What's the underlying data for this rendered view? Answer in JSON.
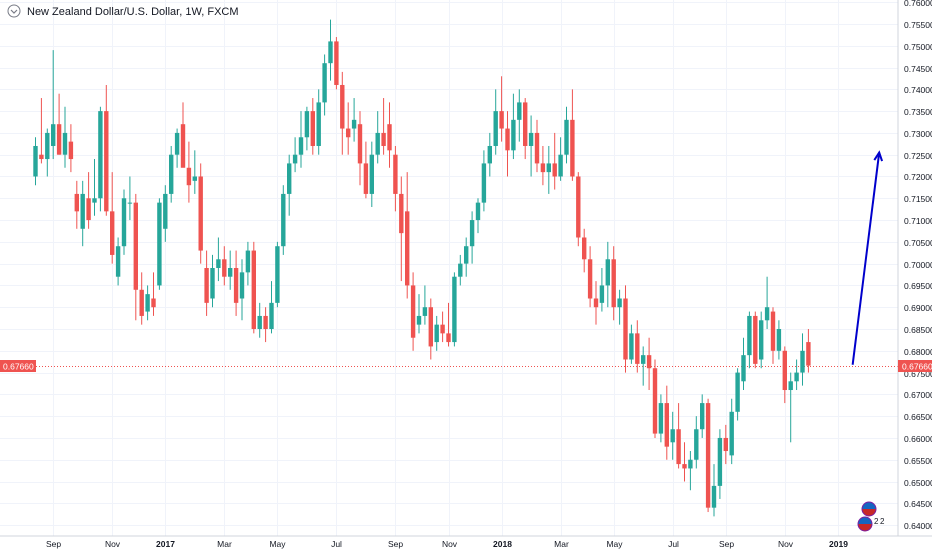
{
  "chart_data": {
    "type": "candlestick",
    "title": "New Zealand Dollar/U.S. Dollar, 1W, FXCM",
    "ylim": [
      0.6375,
      0.7605
    ],
    "yticks": [
      "0.76000",
      "0.75500",
      "0.75000",
      "0.74500",
      "0.74000",
      "0.73500",
      "0.73000",
      "0.72500",
      "0.72000",
      "0.71500",
      "0.71000",
      "0.70500",
      "0.70000",
      "0.69500",
      "0.69000",
      "0.68500",
      "0.68000",
      "0.67500",
      "0.67000",
      "0.66500",
      "0.66000",
      "0.65500",
      "0.65000",
      "0.64500",
      "0.64000"
    ],
    "xticks": [
      {
        "index": 3,
        "label": "Sep"
      },
      {
        "index": 13,
        "label": "Nov"
      },
      {
        "index": 22,
        "label": "2017"
      },
      {
        "index": 32,
        "label": "Mar"
      },
      {
        "index": 41,
        "label": "May"
      },
      {
        "index": 51,
        "label": "Jul"
      },
      {
        "index": 61,
        "label": "Sep"
      },
      {
        "index": 70,
        "label": "Nov"
      },
      {
        "index": 79,
        "label": "2018"
      },
      {
        "index": 89,
        "label": "Mar"
      },
      {
        "index": 98,
        "label": "May"
      },
      {
        "index": 108,
        "label": "Jul"
      },
      {
        "index": 117,
        "label": "Sep"
      },
      {
        "index": 127,
        "label": "Nov"
      },
      {
        "index": 136,
        "label": "2019"
      }
    ],
    "grid": true,
    "up_color": "#26a69a",
    "down_color": "#ef5350",
    "current_price": 0.6766,
    "current_price_label": "0.67660",
    "current_price_color": "#ef5350",
    "annotation": {
      "type": "arrow",
      "color": "#0000cc",
      "from": {
        "index": 138.5,
        "price": 0.6768
      },
      "to": {
        "index": 143,
        "price": 0.7255
      }
    },
    "candles": [
      {
        "o": 0.72,
        "h": 0.729,
        "l": 0.718,
        "c": 0.727
      },
      {
        "o": 0.725,
        "h": 0.738,
        "l": 0.723,
        "c": 0.724
      },
      {
        "o": 0.724,
        "h": 0.731,
        "l": 0.72,
        "c": 0.73
      },
      {
        "o": 0.727,
        "h": 0.749,
        "l": 0.724,
        "c": 0.732
      },
      {
        "o": 0.732,
        "h": 0.739,
        "l": 0.725,
        "c": 0.725
      },
      {
        "o": 0.725,
        "h": 0.736,
        "l": 0.722,
        "c": 0.73
      },
      {
        "o": 0.728,
        "h": 0.732,
        "l": 0.721,
        "c": 0.724
      },
      {
        "o": 0.716,
        "h": 0.719,
        "l": 0.708,
        "c": 0.712
      },
      {
        "o": 0.708,
        "h": 0.719,
        "l": 0.704,
        "c": 0.716
      },
      {
        "o": 0.715,
        "h": 0.721,
        "l": 0.708,
        "c": 0.71
      },
      {
        "o": 0.714,
        "h": 0.724,
        "l": 0.711,
        "c": 0.715
      },
      {
        "o": 0.715,
        "h": 0.736,
        "l": 0.712,
        "c": 0.735
      },
      {
        "o": 0.735,
        "h": 0.741,
        "l": 0.711,
        "c": 0.712
      },
      {
        "o": 0.712,
        "h": 0.721,
        "l": 0.7,
        "c": 0.702
      },
      {
        "o": 0.697,
        "h": 0.706,
        "l": 0.695,
        "c": 0.704
      },
      {
        "o": 0.704,
        "h": 0.717,
        "l": 0.702,
        "c": 0.715
      },
      {
        "o": 0.714,
        "h": 0.72,
        "l": 0.71,
        "c": 0.714
      },
      {
        "o": 0.714,
        "h": 0.716,
        "l": 0.687,
        "c": 0.694
      },
      {
        "o": 0.694,
        "h": 0.698,
        "l": 0.686,
        "c": 0.688
      },
      {
        "o": 0.689,
        "h": 0.695,
        "l": 0.687,
        "c": 0.693
      },
      {
        "o": 0.692,
        "h": 0.698,
        "l": 0.688,
        "c": 0.69
      },
      {
        "o": 0.695,
        "h": 0.715,
        "l": 0.694,
        "c": 0.714
      },
      {
        "o": 0.708,
        "h": 0.718,
        "l": 0.705,
        "c": 0.716
      },
      {
        "o": 0.716,
        "h": 0.727,
        "l": 0.714,
        "c": 0.725
      },
      {
        "o": 0.725,
        "h": 0.731,
        "l": 0.722,
        "c": 0.73
      },
      {
        "o": 0.732,
        "h": 0.737,
        "l": 0.723,
        "c": 0.722
      },
      {
        "o": 0.722,
        "h": 0.728,
        "l": 0.714,
        "c": 0.718
      },
      {
        "o": 0.719,
        "h": 0.726,
        "l": 0.716,
        "c": 0.72
      },
      {
        "o": 0.72,
        "h": 0.723,
        "l": 0.7,
        "c": 0.703
      },
      {
        "o": 0.699,
        "h": 0.703,
        "l": 0.688,
        "c": 0.691
      },
      {
        "o": 0.692,
        "h": 0.702,
        "l": 0.69,
        "c": 0.699
      },
      {
        "o": 0.699,
        "h": 0.706,
        "l": 0.696,
        "c": 0.701
      },
      {
        "o": 0.701,
        "h": 0.704,
        "l": 0.695,
        "c": 0.697
      },
      {
        "o": 0.697,
        "h": 0.703,
        "l": 0.694,
        "c": 0.699
      },
      {
        "o": 0.699,
        "h": 0.703,
        "l": 0.688,
        "c": 0.691
      },
      {
        "o": 0.692,
        "h": 0.701,
        "l": 0.687,
        "c": 0.698
      },
      {
        "o": 0.698,
        "h": 0.705,
        "l": 0.695,
        "c": 0.703
      },
      {
        "o": 0.703,
        "h": 0.705,
        "l": 0.684,
        "c": 0.685
      },
      {
        "o": 0.685,
        "h": 0.691,
        "l": 0.683,
        "c": 0.688
      },
      {
        "o": 0.688,
        "h": 0.69,
        "l": 0.682,
        "c": 0.685
      },
      {
        "o": 0.685,
        "h": 0.696,
        "l": 0.684,
        "c": 0.691
      },
      {
        "o": 0.691,
        "h": 0.705,
        "l": 0.69,
        "c": 0.704
      },
      {
        "o": 0.704,
        "h": 0.718,
        "l": 0.702,
        "c": 0.716
      },
      {
        "o": 0.716,
        "h": 0.725,
        "l": 0.711,
        "c": 0.723
      },
      {
        "o": 0.723,
        "h": 0.729,
        "l": 0.721,
        "c": 0.725
      },
      {
        "o": 0.725,
        "h": 0.735,
        "l": 0.722,
        "c": 0.729
      },
      {
        "o": 0.729,
        "h": 0.736,
        "l": 0.726,
        "c": 0.735
      },
      {
        "o": 0.735,
        "h": 0.738,
        "l": 0.725,
        "c": 0.727
      },
      {
        "o": 0.727,
        "h": 0.74,
        "l": 0.725,
        "c": 0.737
      },
      {
        "o": 0.737,
        "h": 0.748,
        "l": 0.734,
        "c": 0.746
      },
      {
        "o": 0.746,
        "h": 0.756,
        "l": 0.742,
        "c": 0.751
      },
      {
        "o": 0.751,
        "h": 0.752,
        "l": 0.74,
        "c": 0.741
      },
      {
        "o": 0.741,
        "h": 0.744,
        "l": 0.725,
        "c": 0.731
      },
      {
        "o": 0.731,
        "h": 0.737,
        "l": 0.725,
        "c": 0.729
      },
      {
        "o": 0.731,
        "h": 0.738,
        "l": 0.728,
        "c": 0.733
      },
      {
        "o": 0.732,
        "h": 0.735,
        "l": 0.718,
        "c": 0.723
      },
      {
        "o": 0.723,
        "h": 0.728,
        "l": 0.715,
        "c": 0.716
      },
      {
        "o": 0.716,
        "h": 0.728,
        "l": 0.713,
        "c": 0.725
      },
      {
        "o": 0.725,
        "h": 0.735,
        "l": 0.723,
        "c": 0.73
      },
      {
        "o": 0.73,
        "h": 0.738,
        "l": 0.725,
        "c": 0.727
      },
      {
        "o": 0.732,
        "h": 0.737,
        "l": 0.722,
        "c": 0.726
      },
      {
        "o": 0.725,
        "h": 0.727,
        "l": 0.712,
        "c": 0.716
      },
      {
        "o": 0.716,
        "h": 0.72,
        "l": 0.696,
        "c": 0.707
      },
      {
        "o": 0.712,
        "h": 0.721,
        "l": 0.692,
        "c": 0.695
      },
      {
        "o": 0.695,
        "h": 0.698,
        "l": 0.68,
        "c": 0.683
      },
      {
        "o": 0.686,
        "h": 0.693,
        "l": 0.684,
        "c": 0.688
      },
      {
        "o": 0.688,
        "h": 0.695,
        "l": 0.686,
        "c": 0.69
      },
      {
        "o": 0.69,
        "h": 0.692,
        "l": 0.678,
        "c": 0.681
      },
      {
        "o": 0.682,
        "h": 0.688,
        "l": 0.68,
        "c": 0.686
      },
      {
        "o": 0.686,
        "h": 0.689,
        "l": 0.682,
        "c": 0.684
      },
      {
        "o": 0.684,
        "h": 0.691,
        "l": 0.681,
        "c": 0.682
      },
      {
        "o": 0.682,
        "h": 0.698,
        "l": 0.681,
        "c": 0.697
      },
      {
        "o": 0.697,
        "h": 0.702,
        "l": 0.695,
        "c": 0.7
      },
      {
        "o": 0.7,
        "h": 0.706,
        "l": 0.697,
        "c": 0.704
      },
      {
        "o": 0.704,
        "h": 0.712,
        "l": 0.7,
        "c": 0.71
      },
      {
        "o": 0.71,
        "h": 0.715,
        "l": 0.707,
        "c": 0.714
      },
      {
        "o": 0.714,
        "h": 0.726,
        "l": 0.712,
        "c": 0.723
      },
      {
        "o": 0.723,
        "h": 0.73,
        "l": 0.72,
        "c": 0.727
      },
      {
        "o": 0.727,
        "h": 0.74,
        "l": 0.725,
        "c": 0.735
      },
      {
        "o": 0.735,
        "h": 0.743,
        "l": 0.728,
        "c": 0.731
      },
      {
        "o": 0.731,
        "h": 0.735,
        "l": 0.72,
        "c": 0.726
      },
      {
        "o": 0.726,
        "h": 0.739,
        "l": 0.724,
        "c": 0.733
      },
      {
        "o": 0.733,
        "h": 0.74,
        "l": 0.728,
        "c": 0.737
      },
      {
        "o": 0.737,
        "h": 0.738,
        "l": 0.724,
        "c": 0.727
      },
      {
        "o": 0.727,
        "h": 0.734,
        "l": 0.72,
        "c": 0.73
      },
      {
        "o": 0.73,
        "h": 0.733,
        "l": 0.721,
        "c": 0.723
      },
      {
        "o": 0.723,
        "h": 0.727,
        "l": 0.718,
        "c": 0.721
      },
      {
        "o": 0.721,
        "h": 0.727,
        "l": 0.716,
        "c": 0.723
      },
      {
        "o": 0.723,
        "h": 0.73,
        "l": 0.717,
        "c": 0.72
      },
      {
        "o": 0.72,
        "h": 0.729,
        "l": 0.719,
        "c": 0.725
      },
      {
        "o": 0.725,
        "h": 0.736,
        "l": 0.723,
        "c": 0.733
      },
      {
        "o": 0.733,
        "h": 0.74,
        "l": 0.719,
        "c": 0.72
      },
      {
        "o": 0.72,
        "h": 0.721,
        "l": 0.704,
        "c": 0.706
      },
      {
        "o": 0.706,
        "h": 0.708,
        "l": 0.698,
        "c": 0.701
      },
      {
        "o": 0.701,
        "h": 0.704,
        "l": 0.69,
        "c": 0.692
      },
      {
        "o": 0.692,
        "h": 0.696,
        "l": 0.686,
        "c": 0.69
      },
      {
        "o": 0.691,
        "h": 0.699,
        "l": 0.689,
        "c": 0.695
      },
      {
        "o": 0.695,
        "h": 0.705,
        "l": 0.69,
        "c": 0.701
      },
      {
        "o": 0.701,
        "h": 0.704,
        "l": 0.687,
        "c": 0.69
      },
      {
        "o": 0.69,
        "h": 0.694,
        "l": 0.686,
        "c": 0.692
      },
      {
        "o": 0.692,
        "h": 0.695,
        "l": 0.675,
        "c": 0.678
      },
      {
        "o": 0.678,
        "h": 0.686,
        "l": 0.677,
        "c": 0.684
      },
      {
        "o": 0.684,
        "h": 0.687,
        "l": 0.675,
        "c": 0.677
      },
      {
        "o": 0.677,
        "h": 0.681,
        "l": 0.672,
        "c": 0.679
      },
      {
        "o": 0.679,
        "h": 0.683,
        "l": 0.671,
        "c": 0.676
      },
      {
        "o": 0.676,
        "h": 0.678,
        "l": 0.66,
        "c": 0.661
      },
      {
        "o": 0.661,
        "h": 0.67,
        "l": 0.659,
        "c": 0.668
      },
      {
        "o": 0.668,
        "h": 0.672,
        "l": 0.655,
        "c": 0.658
      },
      {
        "o": 0.659,
        "h": 0.666,
        "l": 0.655,
        "c": 0.662
      },
      {
        "o": 0.662,
        "h": 0.668,
        "l": 0.653,
        "c": 0.654
      },
      {
        "o": 0.654,
        "h": 0.659,
        "l": 0.65,
        "c": 0.653
      },
      {
        "o": 0.653,
        "h": 0.657,
        "l": 0.648,
        "c": 0.655
      },
      {
        "o": 0.655,
        "h": 0.665,
        "l": 0.653,
        "c": 0.662
      },
      {
        "o": 0.662,
        "h": 0.67,
        "l": 0.66,
        "c": 0.668
      },
      {
        "o": 0.668,
        "h": 0.669,
        "l": 0.643,
        "c": 0.644
      },
      {
        "o": 0.644,
        "h": 0.654,
        "l": 0.642,
        "c": 0.649
      },
      {
        "o": 0.649,
        "h": 0.662,
        "l": 0.646,
        "c": 0.66
      },
      {
        "o": 0.66,
        "h": 0.663,
        "l": 0.654,
        "c": 0.657
      },
      {
        "o": 0.656,
        "h": 0.669,
        "l": 0.654,
        "c": 0.666
      },
      {
        "o": 0.666,
        "h": 0.676,
        "l": 0.664,
        "c": 0.675
      },
      {
        "o": 0.673,
        "h": 0.683,
        "l": 0.671,
        "c": 0.679
      },
      {
        "o": 0.679,
        "h": 0.689,
        "l": 0.676,
        "c": 0.688
      },
      {
        "o": 0.688,
        "h": 0.689,
        "l": 0.676,
        "c": 0.677
      },
      {
        "o": 0.678,
        "h": 0.689,
        "l": 0.676,
        "c": 0.687
      },
      {
        "o": 0.687,
        "h": 0.697,
        "l": 0.685,
        "c": 0.69
      },
      {
        "o": 0.689,
        "h": 0.69,
        "l": 0.677,
        "c": 0.68
      },
      {
        "o": 0.68,
        "h": 0.687,
        "l": 0.678,
        "c": 0.685
      },
      {
        "o": 0.68,
        "h": 0.681,
        "l": 0.668,
        "c": 0.671
      },
      {
        "o": 0.671,
        "h": 0.675,
        "l": 0.659,
        "c": 0.673
      },
      {
        "o": 0.673,
        "h": 0.678,
        "l": 0.671,
        "c": 0.675
      },
      {
        "o": 0.675,
        "h": 0.684,
        "l": 0.672,
        "c": 0.68
      },
      {
        "o": 0.682,
        "h": 0.685,
        "l": 0.675,
        "c": 0.6766
      }
    ]
  }
}
